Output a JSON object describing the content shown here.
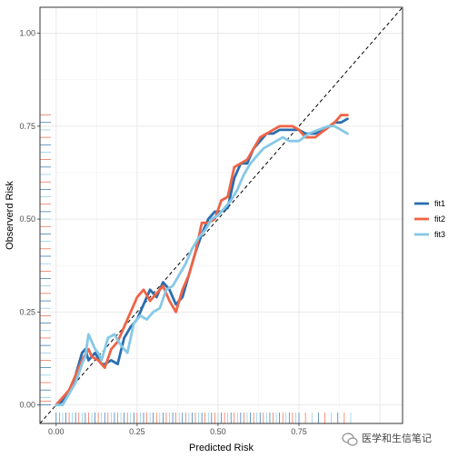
{
  "chart_data": {
    "type": "line",
    "xlabel": "Predicted Risk",
    "ylabel": "Observerd Risk",
    "xlim": [
      -0.05,
      1.07
    ],
    "ylim": [
      -0.05,
      1.07
    ],
    "x_ticks": [
      0.0,
      0.25,
      0.5,
      0.75
    ],
    "x_tick_labels": [
      "0.00",
      "0.25",
      "0.50",
      "0.75"
    ],
    "y_ticks": [
      0.0,
      0.25,
      0.5,
      0.75,
      1.0
    ],
    "y_tick_labels": [
      "0.00",
      "0.25",
      "0.50",
      "0.75",
      "1.00"
    ],
    "grid": true,
    "legend_position": "right",
    "reference_line": {
      "style": "dashed",
      "slope": 1,
      "intercept": 0,
      "color": "#000000"
    },
    "series": [
      {
        "name": "fit1",
        "color": "#2a6eb0",
        "x": [
          0.0,
          0.02,
          0.04,
          0.06,
          0.08,
          0.09,
          0.1,
          0.12,
          0.14,
          0.15,
          0.17,
          0.19,
          0.21,
          0.23,
          0.25,
          0.27,
          0.29,
          0.31,
          0.33,
          0.35,
          0.37,
          0.39,
          0.41,
          0.43,
          0.45,
          0.47,
          0.49,
          0.51,
          0.53,
          0.55,
          0.57,
          0.59,
          0.61,
          0.63,
          0.65,
          0.67,
          0.69,
          0.71,
          0.73,
          0.75,
          0.77,
          0.8,
          0.83,
          0.86,
          0.88,
          0.9
        ],
        "y": [
          0.0,
          0.01,
          0.03,
          0.08,
          0.14,
          0.15,
          0.12,
          0.14,
          0.11,
          0.11,
          0.12,
          0.11,
          0.18,
          0.21,
          0.23,
          0.27,
          0.31,
          0.29,
          0.33,
          0.31,
          0.27,
          0.29,
          0.35,
          0.41,
          0.46,
          0.5,
          0.52,
          0.52,
          0.53,
          0.61,
          0.65,
          0.65,
          0.69,
          0.71,
          0.73,
          0.73,
          0.74,
          0.74,
          0.74,
          0.74,
          0.73,
          0.73,
          0.74,
          0.76,
          0.76,
          0.77
        ]
      },
      {
        "name": "fit2",
        "color": "#ef6445",
        "x": [
          0.0,
          0.02,
          0.04,
          0.06,
          0.08,
          0.1,
          0.11,
          0.13,
          0.15,
          0.17,
          0.19,
          0.21,
          0.23,
          0.25,
          0.27,
          0.29,
          0.31,
          0.33,
          0.35,
          0.37,
          0.39,
          0.41,
          0.43,
          0.45,
          0.47,
          0.49,
          0.51,
          0.53,
          0.55,
          0.57,
          0.59,
          0.61,
          0.63,
          0.65,
          0.67,
          0.69,
          0.71,
          0.73,
          0.75,
          0.77,
          0.8,
          0.83,
          0.86,
          0.88,
          0.9
        ],
        "y": [
          0.0,
          0.02,
          0.04,
          0.08,
          0.12,
          0.15,
          0.13,
          0.12,
          0.1,
          0.15,
          0.17,
          0.21,
          0.25,
          0.29,
          0.31,
          0.28,
          0.3,
          0.32,
          0.28,
          0.25,
          0.31,
          0.35,
          0.41,
          0.49,
          0.49,
          0.5,
          0.55,
          0.56,
          0.64,
          0.65,
          0.66,
          0.69,
          0.72,
          0.73,
          0.74,
          0.75,
          0.75,
          0.75,
          0.74,
          0.72,
          0.72,
          0.74,
          0.76,
          0.78,
          0.78
        ]
      },
      {
        "name": "fit3",
        "color": "#86c8e6",
        "x": [
          0.0,
          0.02,
          0.04,
          0.06,
          0.08,
          0.09,
          0.1,
          0.11,
          0.12,
          0.13,
          0.14,
          0.16,
          0.18,
          0.2,
          0.22,
          0.24,
          0.26,
          0.28,
          0.3,
          0.32,
          0.34,
          0.36,
          0.38,
          0.4,
          0.42,
          0.44,
          0.46,
          0.48,
          0.5,
          0.52,
          0.54,
          0.56,
          0.58,
          0.6,
          0.62,
          0.64,
          0.66,
          0.68,
          0.7,
          0.72,
          0.75,
          0.78,
          0.81,
          0.84,
          0.86,
          0.88,
          0.9
        ],
        "y": [
          0.0,
          0.0,
          0.03,
          0.06,
          0.11,
          0.13,
          0.19,
          0.17,
          0.15,
          0.14,
          0.12,
          0.18,
          0.19,
          0.16,
          0.14,
          0.22,
          0.24,
          0.23,
          0.25,
          0.26,
          0.31,
          0.32,
          0.35,
          0.38,
          0.42,
          0.45,
          0.47,
          0.5,
          0.51,
          0.53,
          0.55,
          0.58,
          0.62,
          0.65,
          0.67,
          0.69,
          0.7,
          0.71,
          0.72,
          0.71,
          0.71,
          0.73,
          0.74,
          0.75,
          0.75,
          0.74,
          0.73
        ]
      }
    ]
  },
  "rug": {
    "colors": [
      "#2a6eb0",
      "#ef6445",
      "#86c8e6"
    ],
    "x_ticks_values": [
      0.0,
      0.01,
      0.02,
      0.03,
      0.04,
      0.05,
      0.06,
      0.07,
      0.08,
      0.09,
      0.1,
      0.11,
      0.12,
      0.13,
      0.14,
      0.15,
      0.16,
      0.17,
      0.18,
      0.19,
      0.2,
      0.21,
      0.22,
      0.23,
      0.24,
      0.25,
      0.26,
      0.27,
      0.28,
      0.29,
      0.3,
      0.31,
      0.32,
      0.33,
      0.34,
      0.35,
      0.36,
      0.37,
      0.38,
      0.39,
      0.4,
      0.41,
      0.42,
      0.43,
      0.44,
      0.45,
      0.46,
      0.47,
      0.48,
      0.49,
      0.5,
      0.51,
      0.52,
      0.53,
      0.54,
      0.55,
      0.56,
      0.57,
      0.58,
      0.59,
      0.6,
      0.61,
      0.62,
      0.63,
      0.64,
      0.65,
      0.66,
      0.67,
      0.68,
      0.69,
      0.7,
      0.71,
      0.72,
      0.73,
      0.74,
      0.75,
      0.77,
      0.79,
      0.81,
      0.83,
      0.85,
      0.87,
      0.89,
      0.91
    ],
    "y_ticks_values": [
      0.0,
      0.01,
      0.02,
      0.04,
      0.06,
      0.08,
      0.1,
      0.12,
      0.14,
      0.16,
      0.18,
      0.2,
      0.22,
      0.24,
      0.26,
      0.28,
      0.3,
      0.32,
      0.34,
      0.36,
      0.38,
      0.4,
      0.42,
      0.44,
      0.46,
      0.48,
      0.5,
      0.52,
      0.54,
      0.56,
      0.58,
      0.6,
      0.62,
      0.64,
      0.66,
      0.68,
      0.7,
      0.72,
      0.74,
      0.76,
      0.78
    ]
  },
  "watermark": {
    "text": "医学和生信笔记",
    "icon": "wechat-icon"
  }
}
